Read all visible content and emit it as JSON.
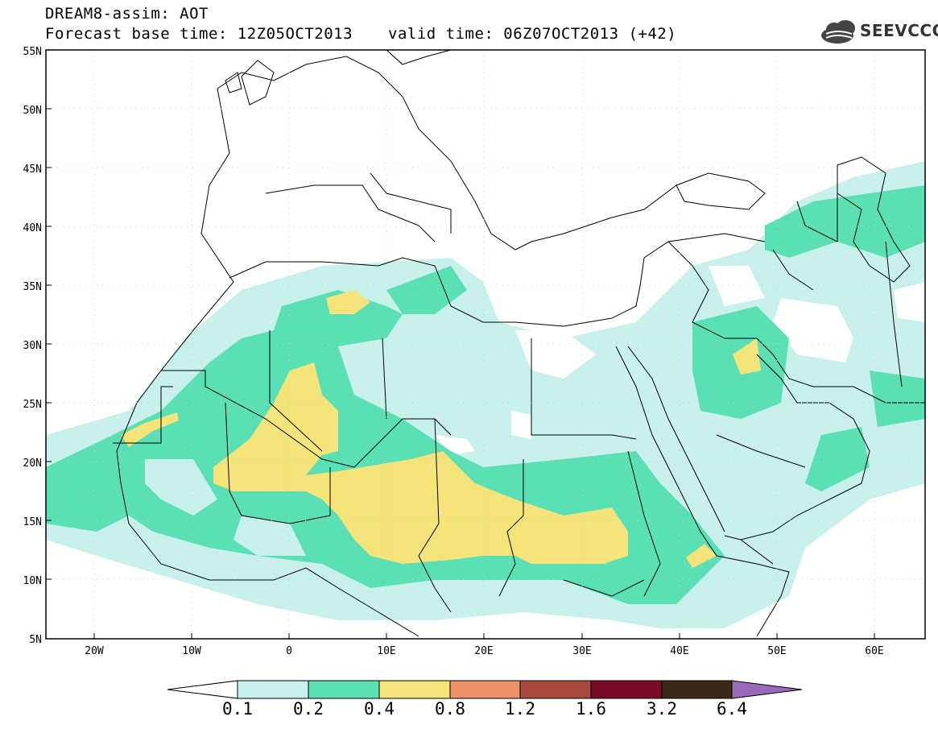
{
  "header": {
    "title": "DREAM8-assim: AOT",
    "base_time": "Forecast base time: 12Z05OCT2013",
    "valid_time": "valid time: 06Z07OCT2013 (+42)"
  },
  "logo": {
    "text": "SEEVCCC",
    "icon": "cloud-icon"
  },
  "map": {
    "lat_labels": [
      "55N",
      "50N",
      "45N",
      "40N",
      "35N",
      "30N",
      "25N",
      "20N",
      "15N",
      "10N",
      "5N"
    ],
    "lon_labels": [
      "20W",
      "10W",
      "0",
      "10E",
      "20E",
      "30E",
      "40E",
      "50E",
      "60E"
    ]
  },
  "colorbar": {
    "labels": [
      "0.1",
      "0.2",
      "0.4",
      "0.8",
      "1.2",
      "1.6",
      "3.2",
      "6.4"
    ],
    "colors": [
      "#ffffff",
      "#c8f0ec",
      "#5ae0b4",
      "#f5e47a",
      "#ec9068",
      "#a84a3c",
      "#7a0a28",
      "#3a2818",
      "#9a6ab8"
    ]
  }
}
